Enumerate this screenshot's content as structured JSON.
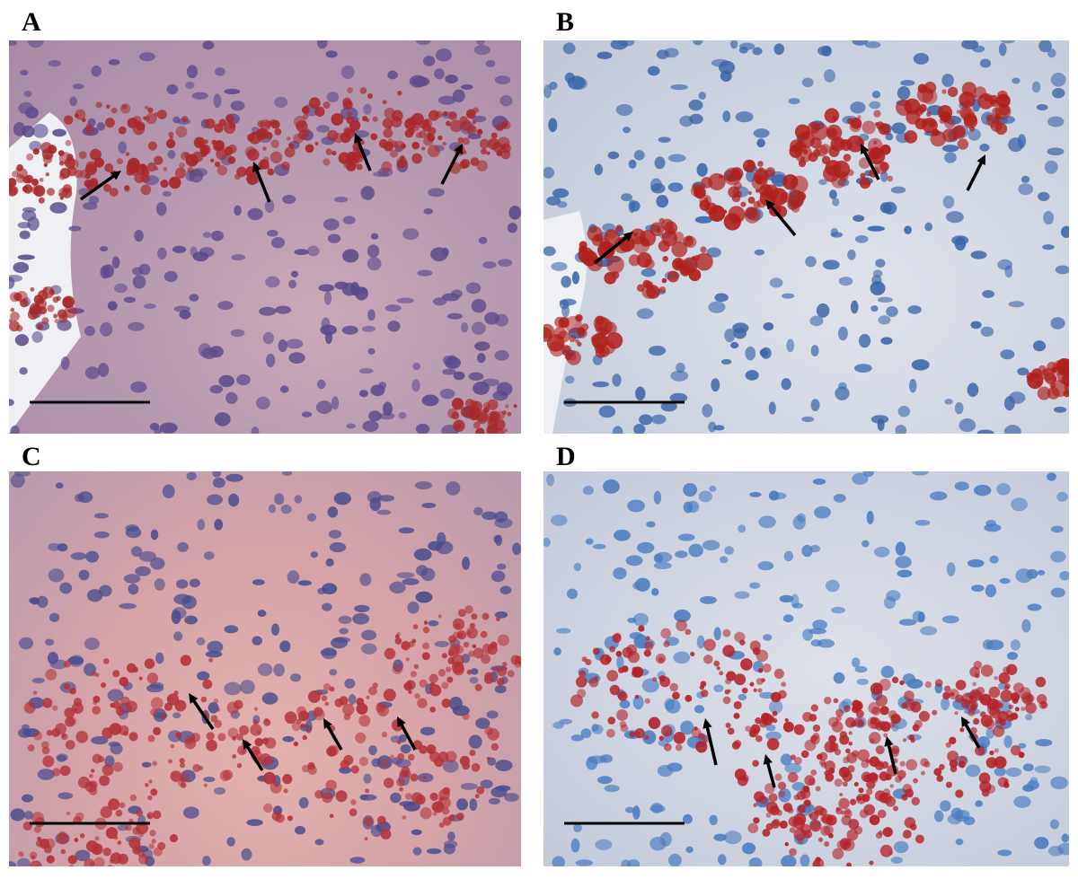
{
  "figure": {
    "panels": [
      {
        "label": "A",
        "stain_color": "#a8282a",
        "nucleus_color": "#5a4a8a",
        "arrow_count": 4,
        "has_scale_bar": true
      },
      {
        "label": "B",
        "stain_color": "#b0201c",
        "nucleus_color": "#3a64a8",
        "arrow_count": 4,
        "has_scale_bar": true
      },
      {
        "label": "C",
        "stain_color": "#b2343a",
        "nucleus_color": "#4a4c8c",
        "arrow_count": 4,
        "has_scale_bar": true
      },
      {
        "label": "D",
        "stain_color": "#b42228",
        "nucleus_color": "#4a7cc0",
        "arrow_count": 4,
        "has_scale_bar": true
      }
    ]
  }
}
